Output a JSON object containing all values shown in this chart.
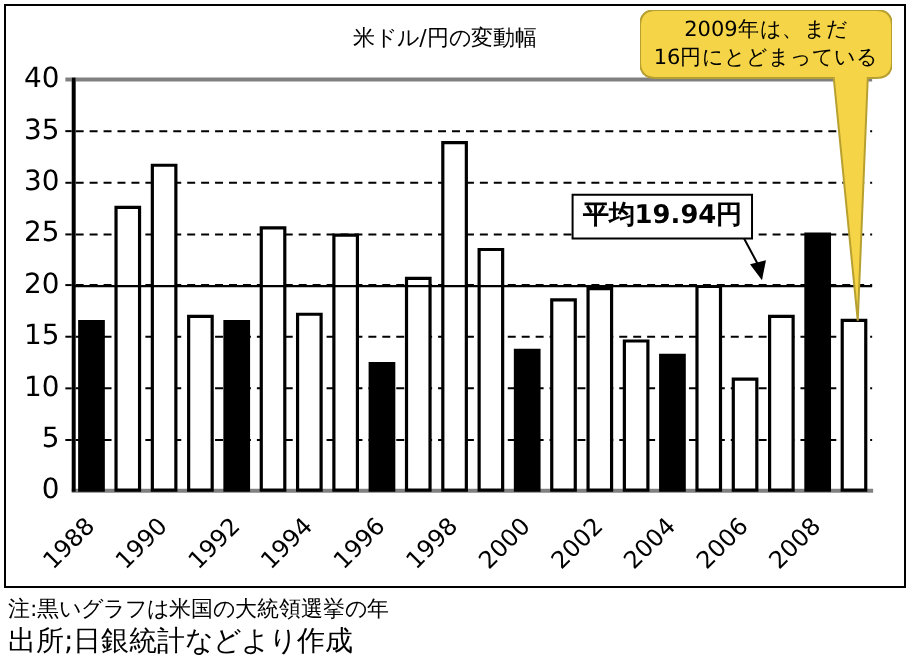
{
  "chart_data": {
    "type": "bar",
    "title": "米ドル/円の変動幅",
    "categories": [
      "1988",
      null,
      "1990",
      null,
      "1992",
      null,
      "1994",
      null,
      "1996",
      null,
      "1998",
      null,
      "2000",
      null,
      "2002",
      null,
      "2004",
      null,
      "2006",
      null,
      "2008",
      null
    ],
    "values": [
      16.5,
      27.6,
      31.7,
      17.0,
      16.5,
      25.6,
      17.2,
      24.9,
      12.4,
      20.7,
      33.9,
      23.5,
      13.7,
      18.6,
      19.7,
      14.6,
      13.2,
      19.9,
      10.9,
      17.0,
      25.0,
      16.6
    ],
    "colors": [
      "#000000",
      "#ffffff",
      "#ffffff",
      "#ffffff",
      "#000000",
      "#ffffff",
      "#ffffff",
      "#ffffff",
      "#000000",
      "#ffffff",
      "#ffffff",
      "#ffffff",
      "#000000",
      "#ffffff",
      "#ffffff",
      "#ffffff",
      "#000000",
      "#ffffff",
      "#ffffff",
      "#ffffff",
      "#000000",
      "#ffffff"
    ],
    "ylim": [
      0,
      40
    ],
    "yticks": [
      0,
      5,
      10,
      15,
      20,
      25,
      30,
      35,
      40
    ],
    "grid": "y",
    "legend": false,
    "ref_lines": [
      {
        "axis": "y",
        "value": 19.94,
        "label": "平均19.94円",
        "color": "#000000"
      }
    ],
    "annotations": [
      "2009年は、まだ\n16円にとどまっている",
      "注:黒いグラフは米国の大統領選挙の年",
      "出所;日銀統計などより作成"
    ]
  }
}
